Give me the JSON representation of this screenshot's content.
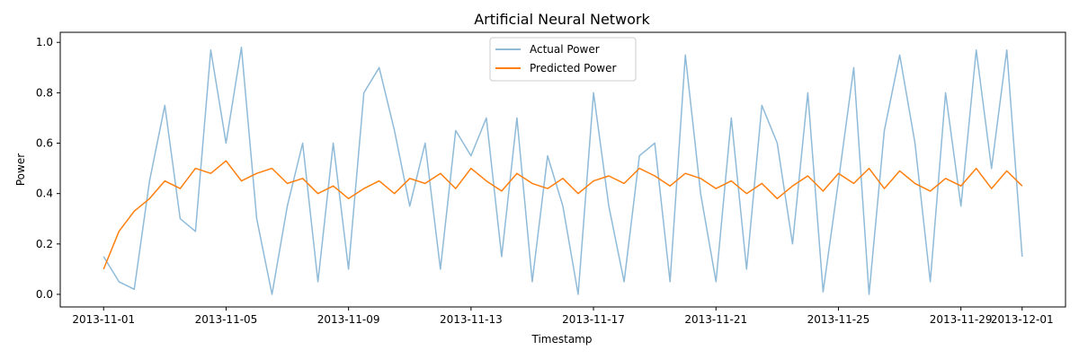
{
  "chart_data": {
    "type": "line",
    "title": "Artificial Neural Network",
    "xlabel": "Timestamp",
    "ylabel": "Power",
    "x_tick_labels": [
      "2013-11-01",
      "2013-11-05",
      "2013-11-09",
      "2013-11-13",
      "2013-11-17",
      "2013-11-21",
      "2013-11-25",
      "2013-11-29",
      "2013-12-01"
    ],
    "y_tick_labels": [
      "0.0",
      "0.2",
      "0.4",
      "0.6",
      "0.8",
      "1.0"
    ],
    "xlim": [
      "2013-10-30T14:00",
      "2013-12-02T10:00"
    ],
    "ylim": [
      -0.05,
      1.04
    ],
    "grid": false,
    "legend": "top-center",
    "x": [
      "2013-11-01",
      "2013-11-01T12:00",
      "2013-11-02",
      "2013-11-02T12:00",
      "2013-11-03",
      "2013-11-03T12:00",
      "2013-11-04",
      "2013-11-04T12:00",
      "2013-11-05",
      "2013-11-05T12:00",
      "2013-11-06",
      "2013-11-06T12:00",
      "2013-11-07",
      "2013-11-07T12:00",
      "2013-11-08",
      "2013-11-08T12:00",
      "2013-11-09",
      "2013-11-09T12:00",
      "2013-11-10",
      "2013-11-10T12:00",
      "2013-11-11",
      "2013-11-11T12:00",
      "2013-11-12",
      "2013-11-12T12:00",
      "2013-11-13",
      "2013-11-13T12:00",
      "2013-11-14",
      "2013-11-14T12:00",
      "2013-11-15",
      "2013-11-15T12:00",
      "2013-11-16",
      "2013-11-16T12:00",
      "2013-11-17",
      "2013-11-17T12:00",
      "2013-11-18",
      "2013-11-18T12:00",
      "2013-11-19",
      "2013-11-19T12:00",
      "2013-11-20",
      "2013-11-20T12:00",
      "2013-11-21",
      "2013-11-21T12:00",
      "2013-11-22",
      "2013-11-22T12:00",
      "2013-11-23",
      "2013-11-23T12:00",
      "2013-11-24",
      "2013-11-24T12:00",
      "2013-11-25",
      "2013-11-25T12:00",
      "2013-11-26",
      "2013-11-26T12:00",
      "2013-11-27",
      "2013-11-27T12:00",
      "2013-11-28",
      "2013-11-28T12:00",
      "2013-11-29",
      "2013-11-29T12:00",
      "2013-11-30",
      "2013-11-30T12:00",
      "2013-12-01"
    ],
    "series": [
      {
        "name": "Actual Power",
        "color": "#1f77b4",
        "opacity": 0.5,
        "values": [
          0.15,
          0.05,
          0.02,
          0.45,
          0.75,
          0.3,
          0.25,
          0.97,
          0.6,
          0.98,
          0.3,
          0.0,
          0.35,
          0.6,
          0.05,
          0.6,
          0.1,
          0.8,
          0.9,
          0.65,
          0.35,
          0.6,
          0.1,
          0.65,
          0.55,
          0.7,
          0.15,
          0.7,
          0.05,
          0.55,
          0.35,
          0.0,
          0.8,
          0.35,
          0.05,
          0.55,
          0.6,
          0.05,
          0.95,
          0.4,
          0.05,
          0.7,
          0.1,
          0.75,
          0.6,
          0.2,
          0.8,
          0.01,
          0.45,
          0.9,
          0.0,
          0.65,
          0.95,
          0.6,
          0.05,
          0.8,
          0.35,
          0.97,
          0.5,
          0.97,
          0.15
        ]
      },
      {
        "name": "Predicted Power",
        "color": "#ff7f0e",
        "opacity": 1,
        "values": [
          0.1,
          0.25,
          0.33,
          0.38,
          0.45,
          0.42,
          0.5,
          0.48,
          0.53,
          0.45,
          0.48,
          0.5,
          0.44,
          0.46,
          0.4,
          0.43,
          0.38,
          0.42,
          0.45,
          0.4,
          0.46,
          0.44,
          0.48,
          0.42,
          0.5,
          0.45,
          0.41,
          0.48,
          0.44,
          0.42,
          0.46,
          0.4,
          0.45,
          0.47,
          0.44,
          0.5,
          0.47,
          0.43,
          0.48,
          0.46,
          0.42,
          0.45,
          0.4,
          0.44,
          0.38,
          0.43,
          0.47,
          0.41,
          0.48,
          0.44,
          0.5,
          0.42,
          0.49,
          0.44,
          0.41,
          0.46,
          0.43,
          0.5,
          0.42,
          0.49,
          0.43
        ]
      }
    ]
  }
}
